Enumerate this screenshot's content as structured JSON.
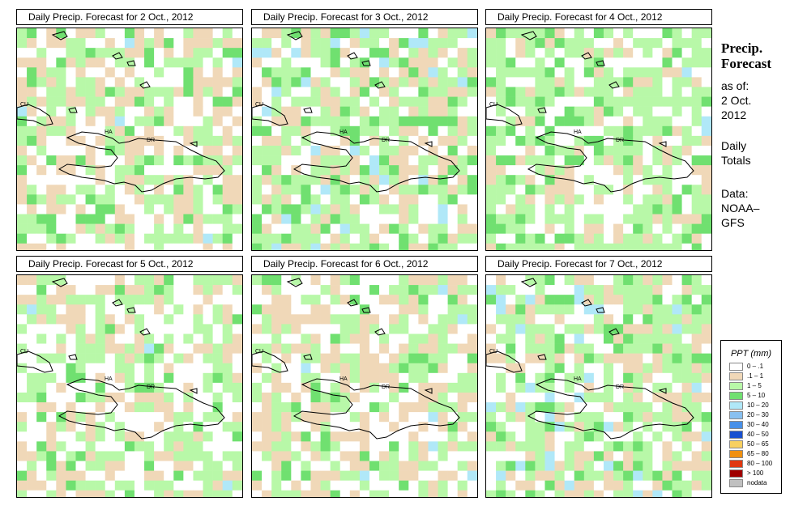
{
  "side": {
    "title_line1": "Precip.",
    "title_line2": "Forecast",
    "asof_line1": "as of:",
    "asof_line2": "2 Oct.",
    "asof_line3": "2012",
    "totals_line1": "Daily",
    "totals_line2": "Totals",
    "source_line1": "Data:",
    "source_line2": "NOAA–",
    "source_line3": "GFS"
  },
  "country_labels": {
    "cuba": "CU",
    "haiti": "HA",
    "dominican_republic": "DR"
  },
  "panels": [
    {
      "title": "Daily Precip. Forecast for  2 Oct., 2012"
    },
    {
      "title": "Daily Precip. Forecast for  3 Oct., 2012"
    },
    {
      "title": "Daily Precip. Forecast for  4 Oct., 2012"
    },
    {
      "title": "Daily Precip. Forecast for  5 Oct., 2012"
    },
    {
      "title": "Daily Precip. Forecast for  6 Oct., 2012"
    },
    {
      "title": "Daily Precip. Forecast for  7 Oct., 2012"
    }
  ],
  "legend": {
    "title": "PPT (mm)",
    "items": [
      {
        "label": "0 – .1",
        "color": "#ffffff"
      },
      {
        "label": ".1 – 1",
        "color": "#f0d8b8"
      },
      {
        "label": "1 – 5",
        "color": "#b8f8a8"
      },
      {
        "label": "5 – 10",
        "color": "#70e070"
      },
      {
        "label": "10 – 20",
        "color": "#b0e8f8"
      },
      {
        "label": "20 – 30",
        "color": "#88c0f0"
      },
      {
        "label": "30 – 40",
        "color": "#4890e8"
      },
      {
        "label": "40 – 50",
        "color": "#1850d0"
      },
      {
        "label": "50 – 65",
        "color": "#f8d060"
      },
      {
        "label": "65 – 80",
        "color": "#f09010"
      },
      {
        "label": "80 – 100",
        "color": "#e03810"
      },
      {
        "label": "> 100",
        "color": "#a00000"
      },
      {
        "label": "nodata",
        "color": "#c0c0c0"
      }
    ]
  }
}
